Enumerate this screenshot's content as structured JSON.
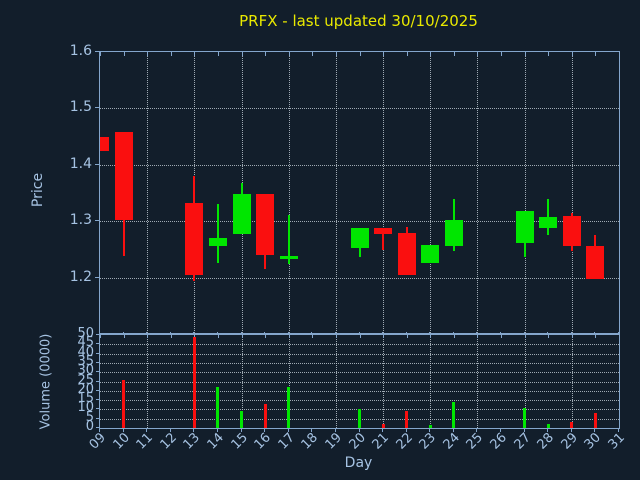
{
  "title": {
    "text": "PRFX - last updated 30/10/2025"
  },
  "axes": {
    "x_label": "Day",
    "price_label": "Price",
    "volume_label": "Volume (0000)",
    "price_tick_labels": [
      "1.6",
      "1.5",
      "1.4",
      "1.3",
      "1.2"
    ],
    "price_tick_values": [
      1.6,
      1.5,
      1.4,
      1.3,
      1.2
    ],
    "volume_tick_labels": [
      "50",
      "45",
      "40",
      "35",
      "30",
      "25",
      "20",
      "15",
      "10",
      "5",
      "0"
    ],
    "volume_tick_values": [
      50,
      45,
      40,
      35,
      30,
      25,
      20,
      15,
      10,
      5,
      0
    ],
    "day_tick_labels": [
      "09",
      "10",
      "11",
      "12",
      "13",
      "14",
      "15",
      "16",
      "17",
      "18",
      "19",
      "20",
      "21",
      "22",
      "23",
      "24",
      "25",
      "26",
      "27",
      "28",
      "29",
      "30",
      "31"
    ],
    "day_tick_values": [
      9,
      10,
      11,
      12,
      13,
      14,
      15,
      16,
      17,
      18,
      19,
      20,
      21,
      22,
      23,
      24,
      25,
      26,
      27,
      28,
      29,
      30,
      31
    ]
  },
  "colors": {
    "background": "#121e2b",
    "frame": "#84a6cc",
    "tick_label": "#a6c3e3",
    "title": "#e9e900",
    "up": "#00e600",
    "down": "#fa0f0f",
    "grid": "#c3cdd7"
  },
  "chart_data": {
    "type": "candlestick",
    "title": "PRFX - last updated 30/10/2025",
    "xlabel": "Day",
    "ylabel": "Price",
    "ylabel2": "Volume (0000)",
    "x_range": [
      9,
      31
    ],
    "price_ylim": [
      1.1,
      1.6
    ],
    "volume_ylim": [
      0,
      50
    ],
    "price_gridlines": [
      1.5,
      1.4,
      1.3,
      1.2
    ],
    "volume_gridlines": [
      45,
      40,
      35,
      30,
      25,
      20,
      15,
      10,
      5
    ],
    "vertical_gridline_days": [
      11,
      13,
      15,
      17,
      19,
      21,
      23,
      25,
      27,
      29
    ],
    "grid": true,
    "legend": "none",
    "candles": [
      {
        "day": 9,
        "open": 1.45,
        "high": 1.45,
        "low": 1.424,
        "close": 1.424,
        "volume": 0
      },
      {
        "day": 10,
        "open": 1.458,
        "high": 1.458,
        "low": 1.238,
        "close": 1.303,
        "volume": 26
      },
      {
        "day": 13,
        "open": 1.332,
        "high": 1.38,
        "low": 1.195,
        "close": 1.205,
        "volume": 49
      },
      {
        "day": 14,
        "open": 1.256,
        "high": 1.33,
        "low": 1.226,
        "close": 1.27,
        "volume": 22
      },
      {
        "day": 15,
        "open": 1.277,
        "high": 1.368,
        "low": 1.277,
        "close": 1.349,
        "volume": 9
      },
      {
        "day": 16,
        "open": 1.349,
        "high": 1.349,
        "low": 1.215,
        "close": 1.241,
        "volume": 13
      },
      {
        "day": 17,
        "open": 1.236,
        "high": 1.312,
        "low": 1.224,
        "close": 1.239,
        "volume": 22
      },
      {
        "day": 20,
        "open": 1.253,
        "high": 1.288,
        "low": 1.237,
        "close": 1.288,
        "volume": 10
      },
      {
        "day": 21,
        "open": 1.288,
        "high": 1.288,
        "low": 1.249,
        "close": 1.278,
        "volume": 2
      },
      {
        "day": 22,
        "open": 1.279,
        "high": 1.29,
        "low": 1.205,
        "close": 1.205,
        "volume": 9
      },
      {
        "day": 23,
        "open": 1.226,
        "high": 1.258,
        "low": 1.226,
        "close": 1.258,
        "volume": 1.5
      },
      {
        "day": 24,
        "open": 1.256,
        "high": 1.34,
        "low": 1.248,
        "close": 1.302,
        "volume": 14
      },
      {
        "day": 27,
        "open": 1.262,
        "high": 1.318,
        "low": 1.237,
        "close": 1.318,
        "volume": 11
      },
      {
        "day": 28,
        "open": 1.288,
        "high": 1.339,
        "low": 1.276,
        "close": 1.308,
        "volume": 2
      },
      {
        "day": 29,
        "open": 1.309,
        "high": 1.315,
        "low": 1.248,
        "close": 1.256,
        "volume": 3
      },
      {
        "day": 30,
        "open": 1.257,
        "high": 1.276,
        "low": 1.198,
        "close": 1.198,
        "volume": 8
      }
    ]
  }
}
